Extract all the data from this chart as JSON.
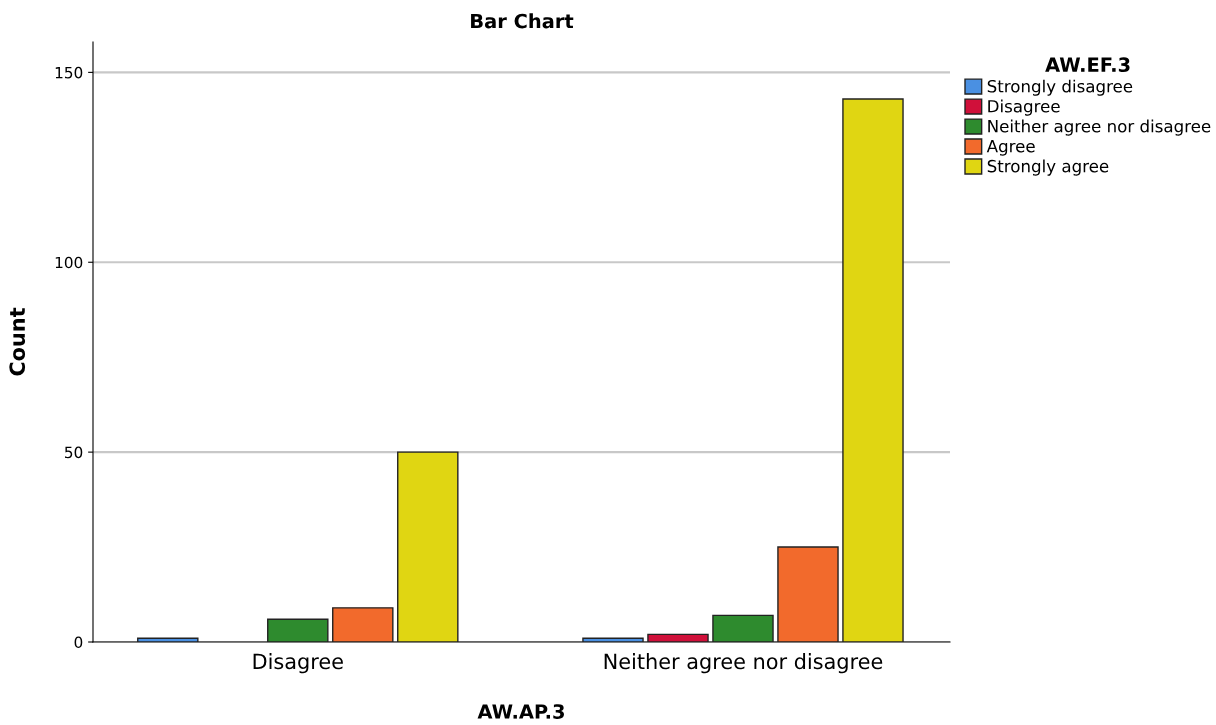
{
  "chart_data": {
    "type": "bar",
    "title": "Bar Chart",
    "xlabel": "AW.AP.3",
    "ylabel": "Count",
    "legend_title": "AW.EF.3",
    "categories": [
      "Disagree",
      "Neither agree nor disagree"
    ],
    "series": [
      {
        "name": "Strongly disagree",
        "color": "#4a90e2",
        "values": [
          1,
          1
        ]
      },
      {
        "name": "Disagree",
        "color": "#d0103a",
        "values": [
          null,
          2
        ]
      },
      {
        "name": "Neither agree nor disagree",
        "color": "#2e8b2e",
        "values": [
          6,
          7
        ]
      },
      {
        "name": "Agree",
        "color": "#f26a2c",
        "values": [
          9,
          25
        ]
      },
      {
        "name": "Strongly agree",
        "color": "#e0d612",
        "values": [
          50,
          143
        ]
      }
    ],
    "ylim": [
      0,
      158
    ],
    "yticks": [
      0,
      50,
      100,
      150
    ],
    "grid": "y",
    "legend": "top right"
  }
}
